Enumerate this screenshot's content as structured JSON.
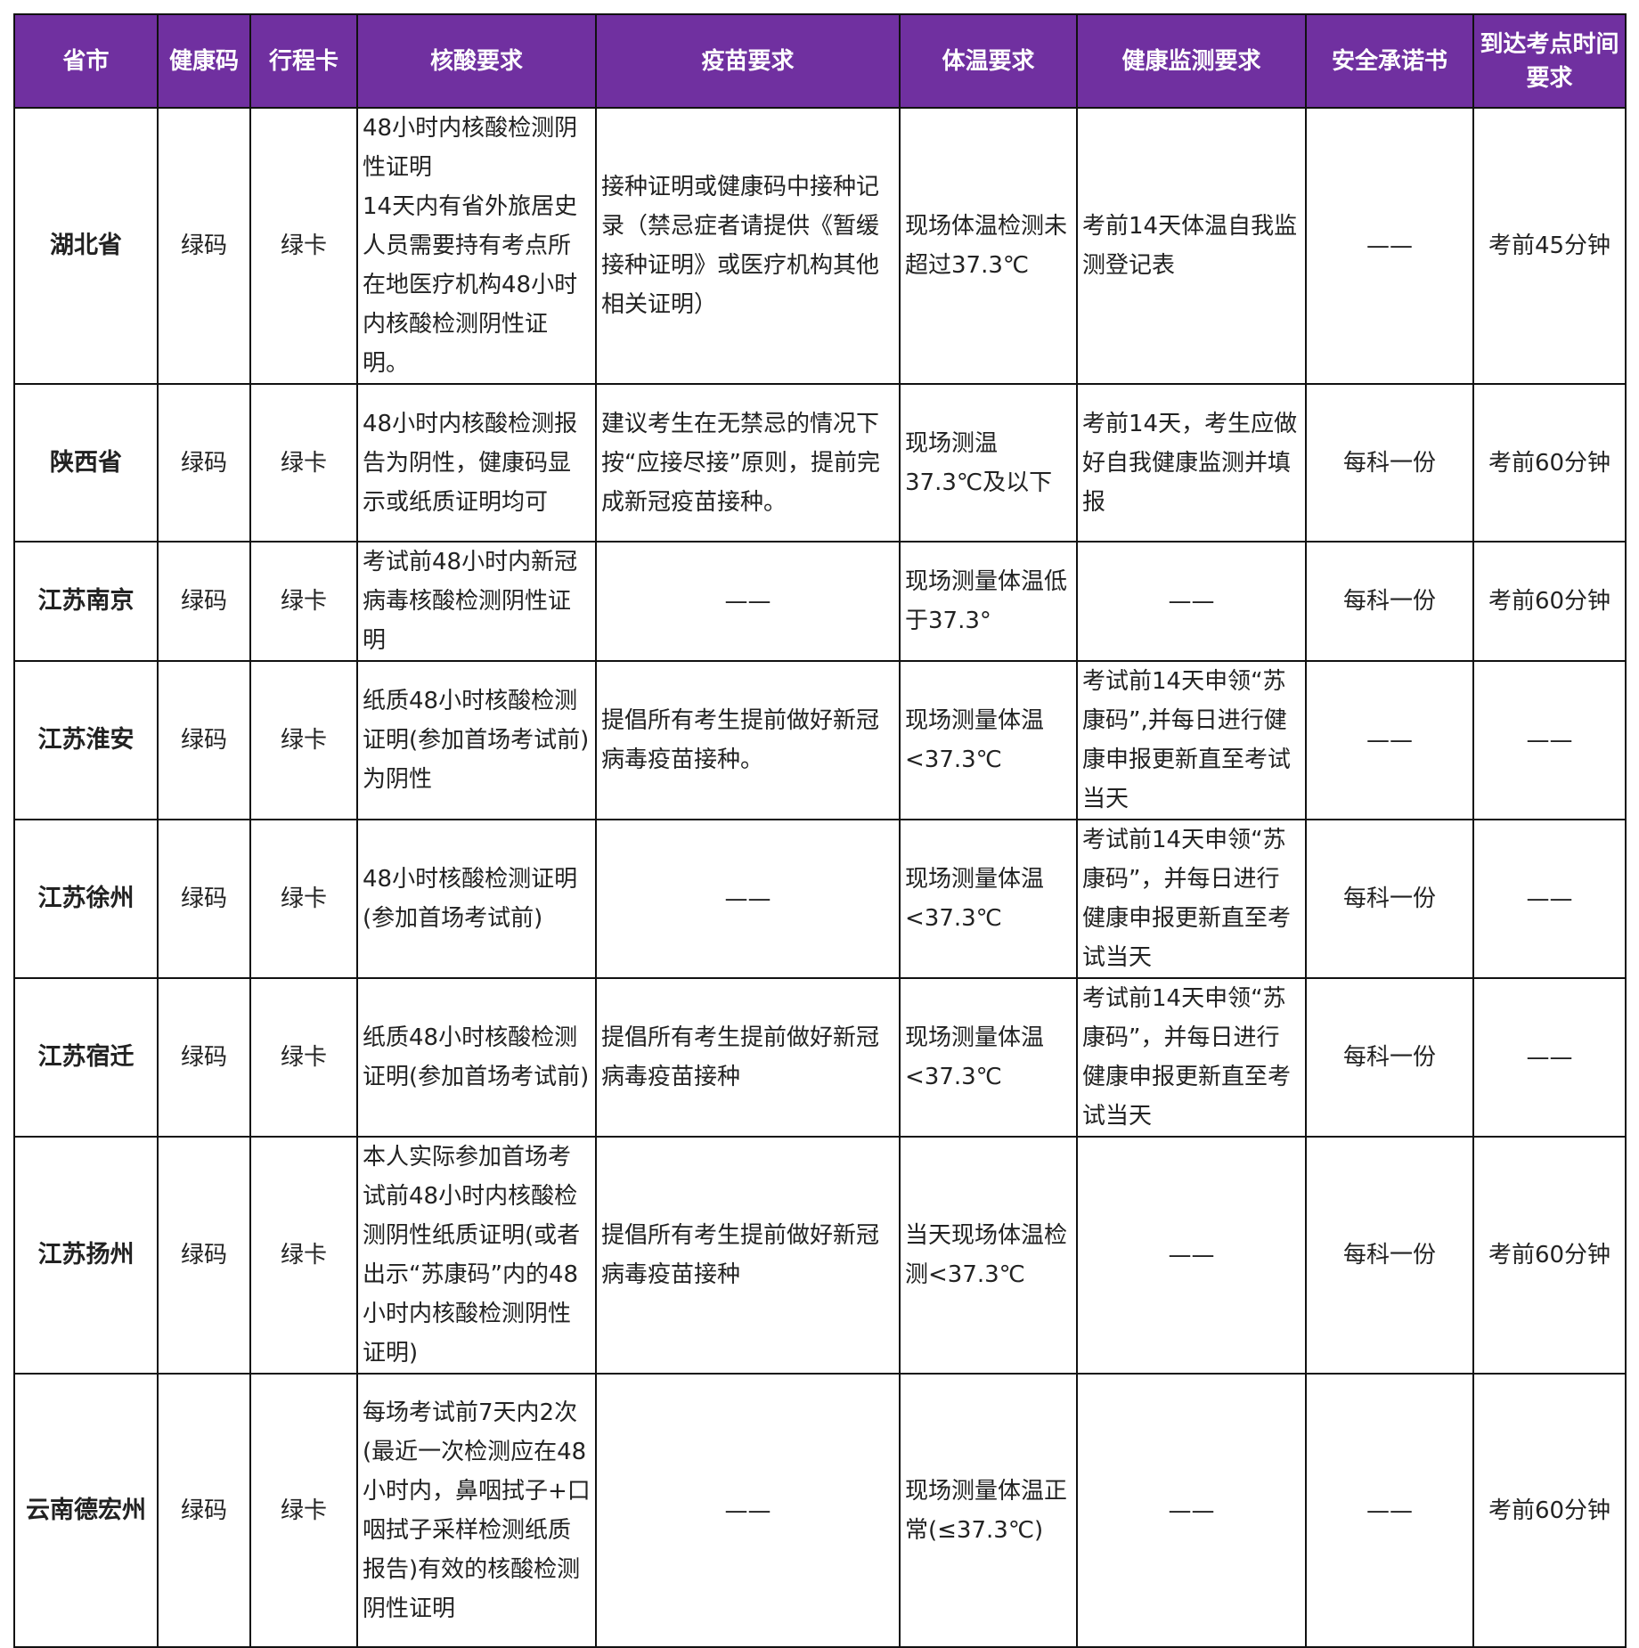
{
  "headers": [
    "省市",
    "健康码",
    "行程卡",
    "核酸要求",
    "疫苗要求",
    "体温要求",
    "健康监测要求",
    "安全承诺书",
    "到达考点时间要求"
  ],
  "rows": [
    [
      "湖北省",
      "绿码",
      "绿卡",
      "48小时内核酸检测阴性证明\n14天内有省外旅居史人员需要持有考点所在地医疗机构48小时内核酸检测阴性证明。",
      "接种证明或健康码中接种记录（禁忌症者请提供《暂缓接种证明》或医疗机构其他相关证明）",
      "现场体温检测未超过37.3℃",
      "考前14天体温自我监测登记表",
      "——",
      "考前45分钟"
    ],
    [
      "陕西省",
      "绿码",
      "绿卡",
      "48小时内核酸检测报告为阴性，健康码显示或纸质证明均可",
      "建议考生在无禁忌的情况下按“应接尽接”原则，提前完成新冠疫苗接种。",
      "现场测温37.3℃及以下",
      "考前14天，考生应做好自我健康监测并填报",
      "每科一份",
      "考前60分钟"
    ],
    [
      "江苏南京",
      "绿码",
      "绿卡",
      "考试前48小时内新冠病毒核酸检测阴性证明",
      "——",
      "现场测量体温低于37.3°",
      "——",
      "每科一份",
      "考前60分钟"
    ],
    [
      "江苏淮安",
      "绿码",
      "绿卡",
      "纸质48小时核酸检测证明(参加首场考试前)为阴性",
      "提倡所有考生提前做好新冠病毒疫苗接种。",
      "现场测量体温<37.3℃",
      "考试前14天申领“苏康码”,并每日进行健康申报更新直至考试当天",
      "——",
      "——"
    ],
    [
      "江苏徐州",
      "绿码",
      "绿卡",
      "48小时核酸检测证明(参加首场考试前)",
      "——",
      "现场测量体温<37.3℃",
      "考试前14天申领“苏康码”，并每日进行健康申报更新直至考试当天",
      "每科一份",
      "——"
    ],
    [
      "江苏宿迁",
      "绿码",
      "绿卡",
      "纸质48小时核酸检测证明(参加首场考试前)",
      "提倡所有考生提前做好新冠病毒疫苗接种",
      "现场测量体温<37.3℃",
      "考试前14天申领“苏康码”，并每日进行健康申报更新直至考试当天",
      "每科一份",
      "——"
    ],
    [
      "江苏扬州",
      "绿码",
      "绿卡",
      "本人实际参加首场考试前48小时内核酸检测阴性纸质证明(或者出示“苏康码”内的48小时内核酸检测阴性证明)",
      "提倡所有考生提前做好新冠病毒疫苗接种",
      "当天现场体温检测<37.3℃",
      "——",
      "每科一份",
      "考前60分钟"
    ],
    [
      "云南德宏州",
      "绿码",
      "绿卡",
      "每场考试前7天内2次(最近一次检测应在48小时内，鼻咽拭子+口咽拭子采样检测纸质报告)有效的核酸检测阴性证明",
      "——",
      "现场测量体温正常(≤37.3℃)",
      "——",
      "——",
      "考前60分钟"
    ]
  ]
}
